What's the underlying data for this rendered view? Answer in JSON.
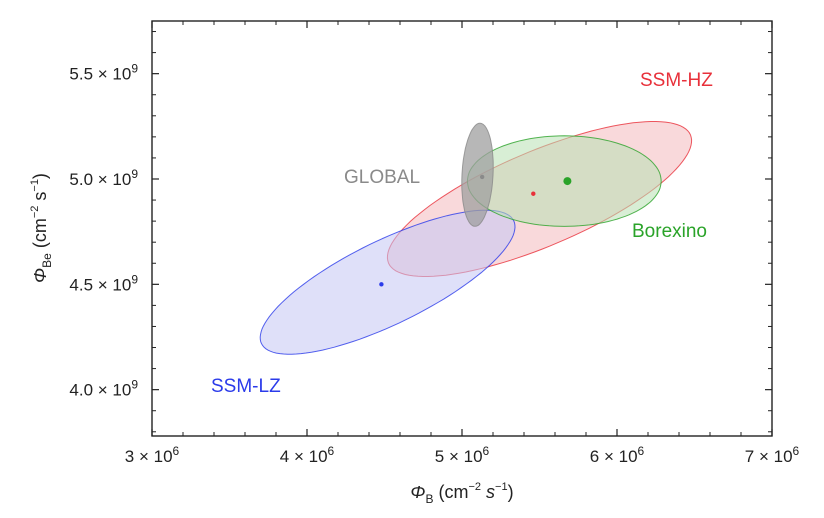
{
  "chart_data": {
    "type": "scatter",
    "title": "",
    "x_axis": {
      "symbol": "Φ",
      "subscript": "B",
      "units_prefix": " (cm",
      "units_exp": "−2",
      "units_suffix": " s",
      "units_exp2": "−1",
      "units_close": ")",
      "range": [
        3000000,
        7000000
      ],
      "ticks": [
        {
          "value": 3000000,
          "mantissa": "3 × 10",
          "exp": "6"
        },
        {
          "value": 4000000,
          "mantissa": "4 × 10",
          "exp": "6"
        },
        {
          "value": 5000000,
          "mantissa": "5 × 10",
          "exp": "6"
        },
        {
          "value": 6000000,
          "mantissa": "6 × 10",
          "exp": "6"
        },
        {
          "value": 7000000,
          "mantissa": "7 × 10",
          "exp": "6"
        }
      ]
    },
    "y_axis": {
      "symbol": "Φ",
      "subscript": "Be",
      "units_prefix": " (cm",
      "units_exp": "−2",
      "units_suffix": " s",
      "units_exp2": "−1",
      "units_close": ")",
      "range": [
        3780000000,
        5750000000
      ],
      "ticks": [
        {
          "value": 4000000000,
          "mantissa": "4.0 × 10",
          "exp": "9"
        },
        {
          "value": 4500000000,
          "mantissa": "4.5 × 10",
          "exp": "9"
        },
        {
          "value": 5000000000,
          "mantissa": "5.0 × 10",
          "exp": "9"
        },
        {
          "value": 5500000000,
          "mantissa": "5.5 × 10",
          "exp": "9"
        }
      ]
    },
    "series": [
      {
        "name": "SSM-HZ",
        "color": "#e8303a",
        "fill": "#f4b9bd",
        "center": [
          5460000,
          4930000000
        ],
        "ellipse": {
          "cx": 5500000,
          "cy": 4905000000,
          "semi_major": 1058000,
          "semi_minor": 225000000,
          "angle_deg": -23
        }
      },
      {
        "name": "SSM-LZ",
        "color": "#2b3bea",
        "fill": "#c4c7f4",
        "center": [
          4480000,
          4500000000
        ],
        "ellipse": {
          "cx": 4520000,
          "cy": 4510000000,
          "semi_major": 905000,
          "semi_minor": 198000000,
          "angle_deg": -26
        }
      },
      {
        "name": "Borexino",
        "color": "#2aa329",
        "fill": "#b8e0b3",
        "center": [
          5680000,
          4990000000
        ],
        "ellipse": {
          "cx": 5660000,
          "cy": 4990000000,
          "semi_major": 625000,
          "semi_minor": 215000000,
          "angle_deg": 0
        }
      },
      {
        "name": "GLOBAL",
        "color": "#8a8a8a",
        "fill": "#9f9f9f",
        "center": [
          5130000,
          5010000000
        ],
        "ellipse": {
          "cx": 5100000,
          "cy": 5020000000,
          "semi_major": 100000,
          "semi_minor": 245000000,
          "angle_deg": 3
        }
      }
    ]
  }
}
